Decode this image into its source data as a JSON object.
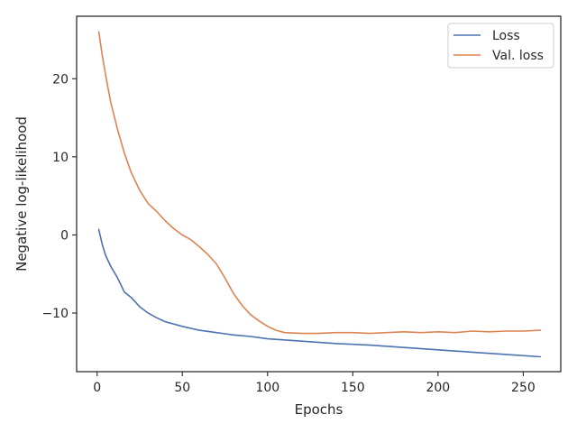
{
  "chart_data": {
    "type": "line",
    "xlabel": "Epochs",
    "ylabel": "Negative log-likelihood",
    "xlim": [
      -12,
      272
    ],
    "ylim": [
      -17.5,
      28
    ],
    "x_ticks": [
      0,
      50,
      100,
      150,
      200,
      250
    ],
    "y_ticks": [
      -10,
      0,
      10,
      20
    ],
    "legend_position": "top-right",
    "grid": false,
    "series": [
      {
        "name": "Loss",
        "color": "#4c72b0",
        "points": [
          [
            1,
            0.7
          ],
          [
            3,
            -1.2
          ],
          [
            5,
            -2.6
          ],
          [
            8,
            -4.0
          ],
          [
            12,
            -5.5
          ],
          [
            16,
            -7.3
          ],
          [
            20,
            -8.0
          ],
          [
            25,
            -9.2
          ],
          [
            30,
            -10.0
          ],
          [
            35,
            -10.6
          ],
          [
            40,
            -11.1
          ],
          [
            50,
            -11.7
          ],
          [
            60,
            -12.2
          ],
          [
            70,
            -12.5
          ],
          [
            80,
            -12.8
          ],
          [
            90,
            -13.0
          ],
          [
            100,
            -13.3
          ],
          [
            120,
            -13.6
          ],
          [
            140,
            -13.9
          ],
          [
            160,
            -14.1
          ],
          [
            180,
            -14.4
          ],
          [
            200,
            -14.7
          ],
          [
            220,
            -15.0
          ],
          [
            240,
            -15.3
          ],
          [
            260,
            -15.6
          ]
        ]
      },
      {
        "name": "Val. loss",
        "color": "#dd8452",
        "points": [
          [
            1,
            26.0
          ],
          [
            3,
            23.0
          ],
          [
            5,
            20.5
          ],
          [
            8,
            17.0
          ],
          [
            12,
            13.5
          ],
          [
            16,
            10.5
          ],
          [
            20,
            8.0
          ],
          [
            25,
            5.7
          ],
          [
            30,
            4.0
          ],
          [
            35,
            3.0
          ],
          [
            40,
            1.8
          ],
          [
            45,
            0.8
          ],
          [
            50,
            0.0
          ],
          [
            55,
            -0.6
          ],
          [
            60,
            -1.5
          ],
          [
            65,
            -2.5
          ],
          [
            70,
            -3.7
          ],
          [
            75,
            -5.5
          ],
          [
            80,
            -7.5
          ],
          [
            85,
            -9.0
          ],
          [
            90,
            -10.2
          ],
          [
            95,
            -11.0
          ],
          [
            100,
            -11.7
          ],
          [
            105,
            -12.2
          ],
          [
            110,
            -12.5
          ],
          [
            120,
            -12.6
          ],
          [
            130,
            -12.6
          ],
          [
            140,
            -12.5
          ],
          [
            150,
            -12.5
          ],
          [
            160,
            -12.6
          ],
          [
            170,
            -12.5
          ],
          [
            180,
            -12.4
          ],
          [
            190,
            -12.5
          ],
          [
            200,
            -12.4
          ],
          [
            210,
            -12.5
          ],
          [
            220,
            -12.3
          ],
          [
            230,
            -12.4
          ],
          [
            240,
            -12.3
          ],
          [
            250,
            -12.3
          ],
          [
            260,
            -12.2
          ]
        ]
      }
    ]
  }
}
